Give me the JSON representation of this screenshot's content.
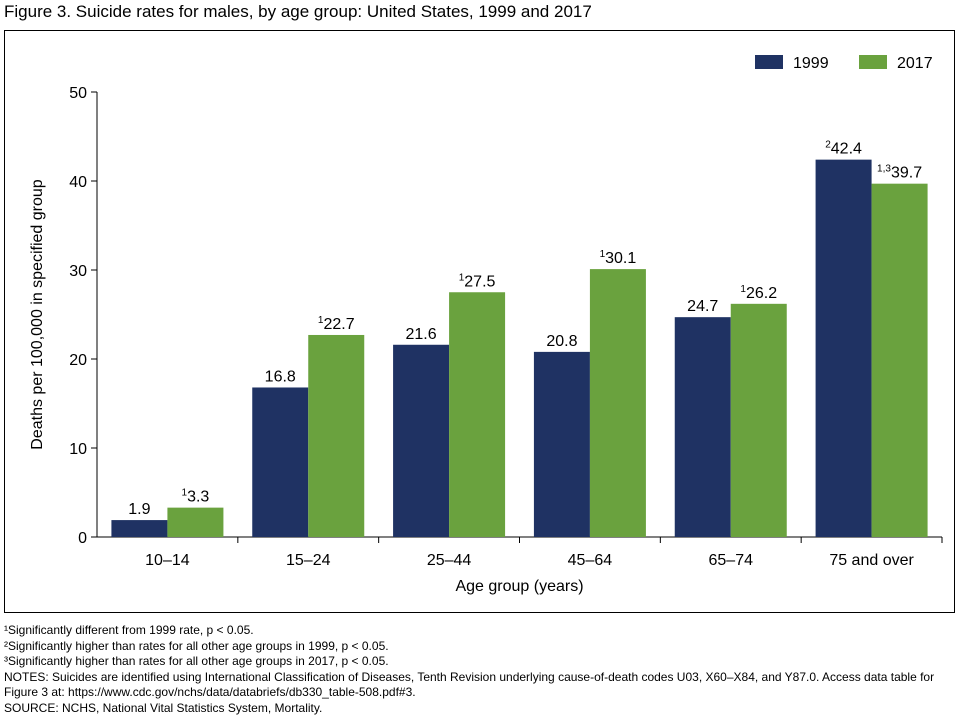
{
  "title": "Figure 3. Suicide rates for males, by age group: United States, 1999 and 2017",
  "chart_data": {
    "type": "bar",
    "categories": [
      "10–14",
      "15–24",
      "25–44",
      "45–64",
      "65–74",
      "75 and over"
    ],
    "series": [
      {
        "name": "1999",
        "color": "#1f3263",
        "values": [
          1.9,
          16.8,
          21.6,
          20.8,
          24.7,
          42.4
        ],
        "labels": [
          "1.9",
          "16.8",
          "21.6",
          "20.8",
          "24.7",
          "42.4"
        ],
        "superscripts": [
          "",
          "",
          "",
          "",
          "",
          "2"
        ]
      },
      {
        "name": "2017",
        "color": "#6aa23e",
        "values": [
          3.3,
          22.7,
          27.5,
          30.1,
          26.2,
          39.7
        ],
        "labels": [
          "3.3",
          "22.7",
          "27.5",
          "30.1",
          "26.2",
          "39.7"
        ],
        "superscripts": [
          "1",
          "1",
          "1",
          "1",
          "1",
          "1,3"
        ]
      }
    ],
    "xlabel": "Age group (years)",
    "ylabel": "Deaths per 100,000 in specified group",
    "ylim": [
      0,
      50
    ],
    "yticks": [
      0,
      10,
      20,
      30,
      40,
      50
    ],
    "grid": false,
    "legend": "top-right"
  },
  "notes": {
    "footnote1": "¹Significantly different from 1999 rate, p < 0.05.",
    "footnote2": "²Significantly higher than rates for all other age groups in 1999, p < 0.05.",
    "footnote3": "³Significantly higher than rates for all other age groups in 2017, p < 0.05.",
    "notes_text": "NOTES: Suicides are identified using International Classification of Diseases, Tenth Revision underlying cause-of-death codes U03, X60–X84, and Y87.0. Access data table for Figure 3 at: https://www.cdc.gov/nchs/data/databriefs/db330_table-508.pdf#3.",
    "source": "SOURCE: NCHS, National Vital Statistics System, Mortality."
  }
}
